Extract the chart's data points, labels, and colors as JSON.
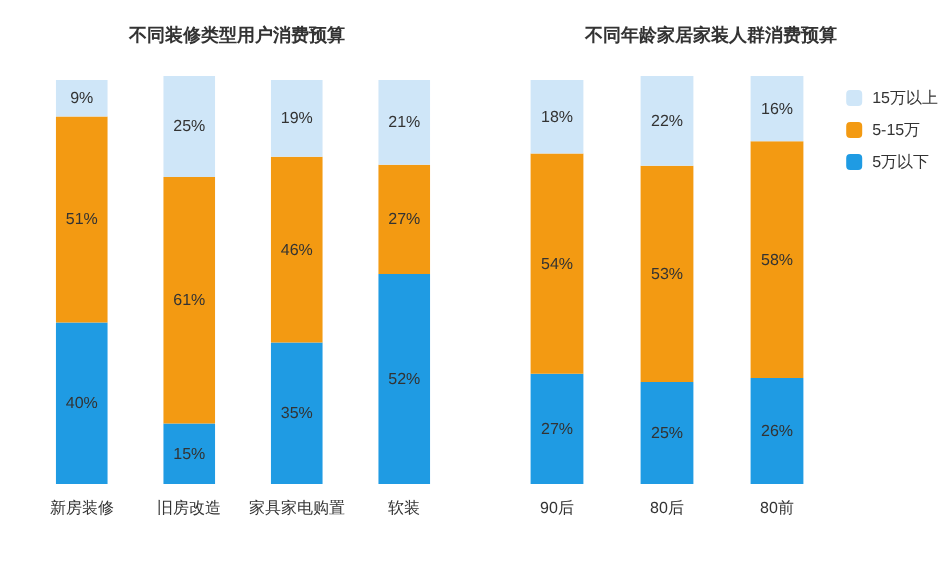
{
  "chart_data": [
    {
      "type": "bar",
      "title": "不同装修类型用户消费预算",
      "categories": [
        "新房装修",
        "旧房改造",
        "家具家电购置",
        "软装"
      ],
      "stacked": true,
      "tick_labels": "x",
      "legend": false,
      "series": [
        {
          "color": "#1f9be3",
          "values": [
            40,
            15,
            35,
            52
          ],
          "value_labels": [
            "40%",
            "15%",
            "35%",
            "52%"
          ]
        },
        {
          "color": "#f39a12",
          "values": [
            51,
            61,
            46,
            27
          ],
          "value_labels": [
            "51%",
            "61%",
            "46%",
            "27%"
          ]
        },
        {
          "color": "#cfe6f8",
          "values": [
            9,
            25,
            19,
            21
          ],
          "value_labels": [
            "9%",
            "25%",
            "19%",
            "21%"
          ]
        }
      ]
    },
    {
      "type": "bar",
      "title": "不同年龄家居家装人群消费预算",
      "categories": [
        "90后",
        "80后",
        "80前"
      ],
      "stacked": true,
      "tick_labels": "x",
      "legend": "top right",
      "series": [
        {
          "name": "5万以下",
          "color": "#1f9be3",
          "values": [
            27,
            25,
            26
          ],
          "value_labels": [
            "27%",
            "25%",
            "26%"
          ]
        },
        {
          "name": "5-15万",
          "color": "#f39a12",
          "values": [
            54,
            53,
            58
          ],
          "value_labels": [
            "54%",
            "53%",
            "58%"
          ]
        },
        {
          "name": "15万以上",
          "color": "#cfe6f8",
          "values": [
            18,
            22,
            16
          ],
          "value_labels": [
            "18%",
            "22%",
            "16%"
          ]
        }
      ]
    }
  ]
}
